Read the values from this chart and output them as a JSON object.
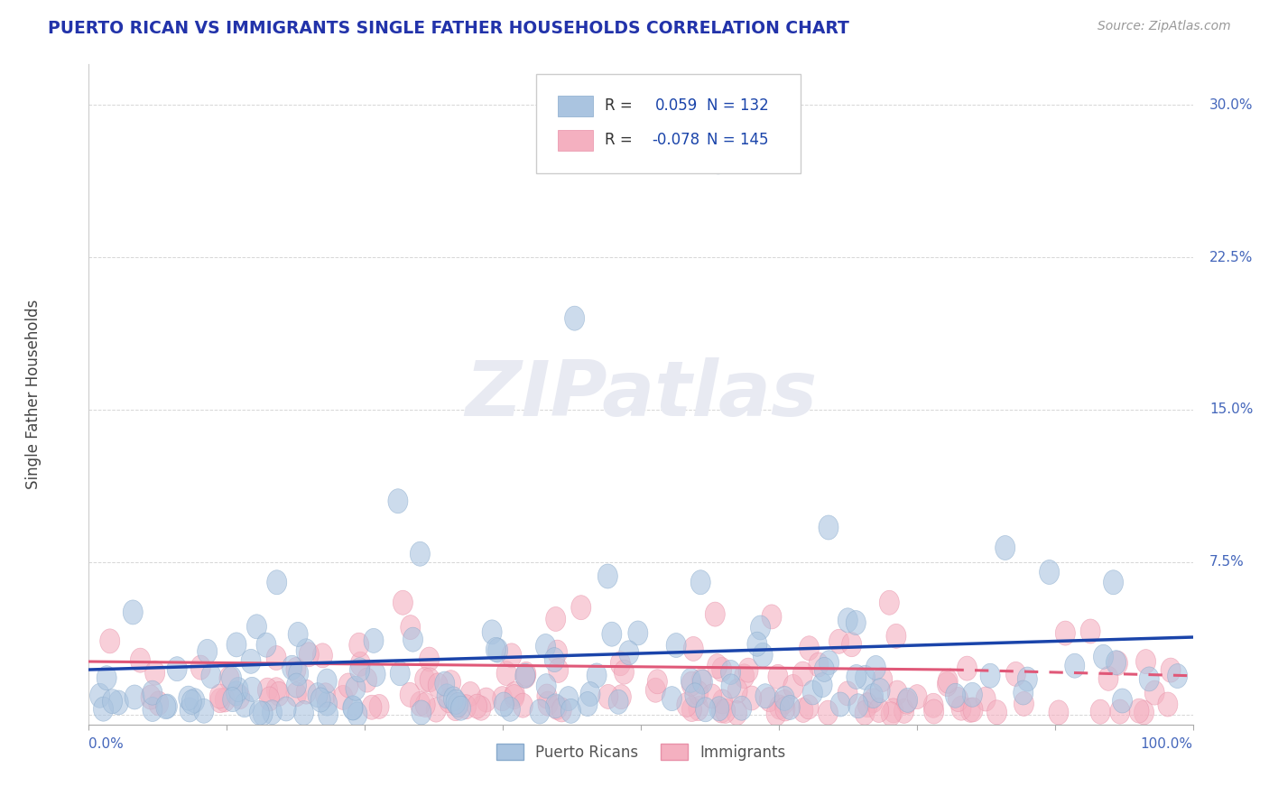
{
  "title": "PUERTO RICAN VS IMMIGRANTS SINGLE FATHER HOUSEHOLDS CORRELATION CHART",
  "source": "Source: ZipAtlas.com",
  "ylabel": "Single Father Households",
  "xlim": [
    0.0,
    1.0
  ],
  "ylim": [
    -0.005,
    0.32
  ],
  "yticks": [
    0.0,
    0.075,
    0.15,
    0.225,
    0.3
  ],
  "ytick_labels": [
    "",
    "7.5%",
    "15.0%",
    "22.5%",
    "30.0%"
  ],
  "blue_R": 0.059,
  "blue_N": 132,
  "pink_R": -0.078,
  "pink_N": 145,
  "blue_color": "#aac4e0",
  "pink_color": "#f4b0c0",
  "blue_edge_color": "#88aacc",
  "pink_edge_color": "#e890a8",
  "blue_line_color": "#1a44aa",
  "pink_line_color": "#e05878",
  "grid_color": "#cccccc",
  "title_color": "#2233aa",
  "axis_label_color": "#4466bb",
  "source_color": "#999999",
  "watermark_color": "#e8eaf2",
  "background_color": "#ffffff",
  "legend_blue_label": "Puerto Ricans",
  "legend_pink_label": "Immigrants",
  "legend_text_color": "#333333",
  "legend_N_color": "#1a44aa",
  "legend_R_value_color": "#1a44aa"
}
